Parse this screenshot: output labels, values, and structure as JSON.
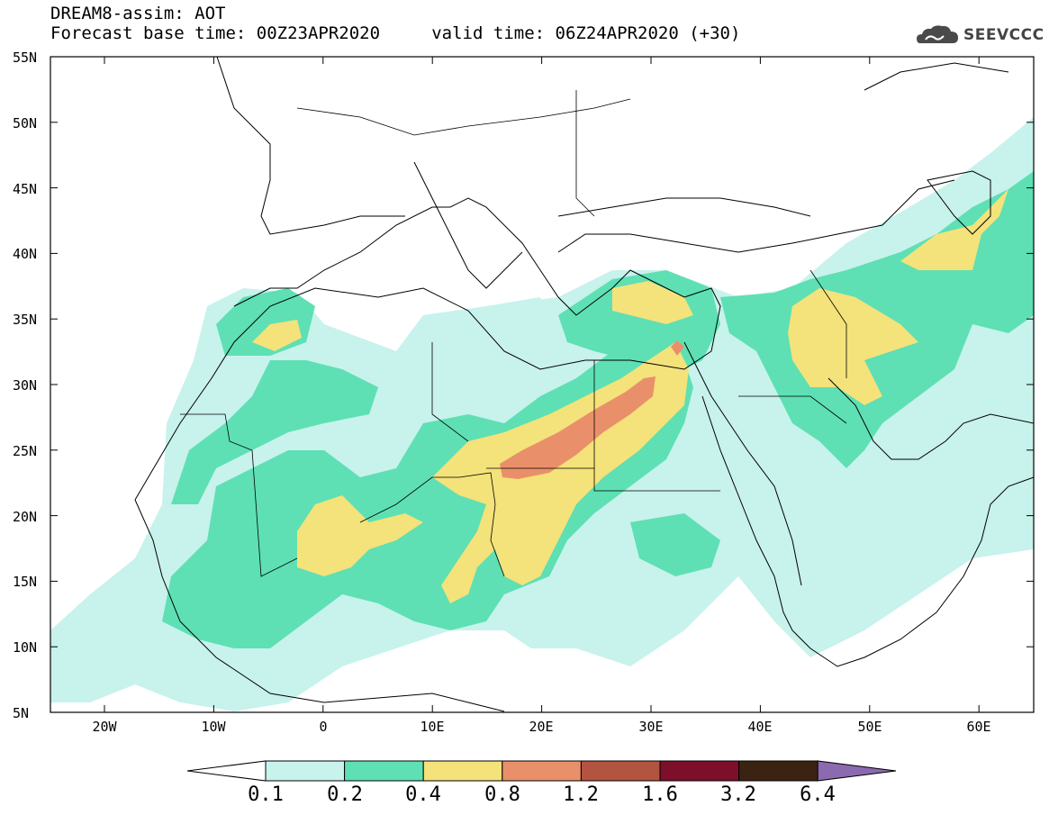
{
  "header": {
    "line1": "DREAM8-assim: AOT",
    "line2": "Forecast base time: 00Z23APR2020     valid time: 06Z24APR2020 (+30)"
  },
  "logo": {
    "text": "SEEVCCC",
    "icon": "cloud-icon"
  },
  "axes": {
    "lat_labels": [
      "55N",
      "50N",
      "45N",
      "40N",
      "35N",
      "30N",
      "25N",
      "20N",
      "15N",
      "10N",
      "5N"
    ],
    "lon_labels": [
      "20W",
      "10W",
      "0",
      "10E",
      "20E",
      "30E",
      "40E",
      "50E",
      "60E"
    ]
  },
  "colorbar": {
    "labels": [
      "0.1",
      "0.2",
      "0.4",
      "0.8",
      "1.2",
      "1.6",
      "3.2",
      "6.4"
    ],
    "colors": [
      "#c8f2ec",
      "#5ee0b4",
      "#f4e27a",
      "#e9906a",
      "#b35440",
      "#7d0f2a",
      "#3b2312",
      "#8b6ab0"
    ],
    "low_color": "#ffffff"
  },
  "legend_colors": {
    "aot_01_02": "#c8f2ec",
    "aot_02_04": "#5ee0b4",
    "aot_04_08": "#f4e27a",
    "aot_08_12": "#e9906a"
  }
}
